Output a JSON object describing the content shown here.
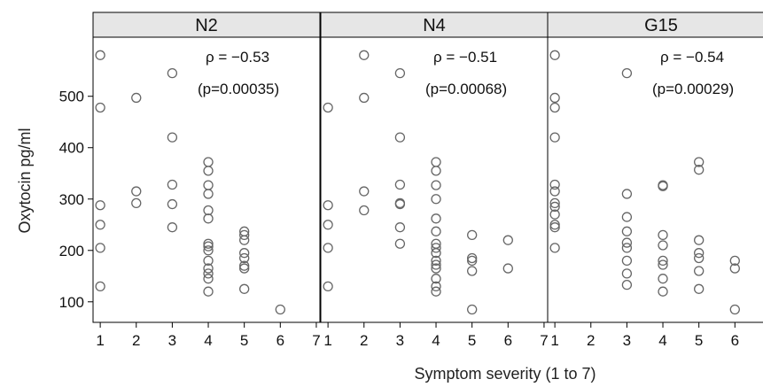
{
  "chart_data": {
    "type": "scatter",
    "xlabel": "Symptom severity (1 to 7)",
    "ylabel": "Oxytocin pg/ml",
    "xlim": [
      0.8,
      7.1
    ],
    "ylim": [
      60,
      615
    ],
    "x_ticks": [
      1,
      2,
      3,
      4,
      5,
      6,
      7
    ],
    "y_ticks": [
      100,
      200,
      300,
      400,
      500
    ],
    "colors": {
      "marker": "#666666",
      "strip": "#e6e6e6",
      "frame": "#000000"
    },
    "panels": [
      {
        "title": "N2",
        "annotation_rho": "ρ = −0.53",
        "annotation_p": "(p=0.00035)",
        "points": [
          [
            1,
            580
          ],
          [
            1,
            478
          ],
          [
            1,
            288
          ],
          [
            1,
            250
          ],
          [
            1,
            205
          ],
          [
            1,
            130
          ],
          [
            2,
            497
          ],
          [
            2,
            315
          ],
          [
            2,
            292
          ],
          [
            3,
            545
          ],
          [
            3,
            420
          ],
          [
            3,
            328
          ],
          [
            3,
            290
          ],
          [
            3,
            245
          ],
          [
            4,
            372
          ],
          [
            4,
            355
          ],
          [
            4,
            327
          ],
          [
            4,
            310
          ],
          [
            4,
            278
          ],
          [
            4,
            262
          ],
          [
            4,
            213
          ],
          [
            4,
            208
          ],
          [
            4,
            200
          ],
          [
            4,
            180
          ],
          [
            4,
            165
          ],
          [
            4,
            155
          ],
          [
            4,
            145
          ],
          [
            4,
            120
          ],
          [
            5,
            237
          ],
          [
            5,
            230
          ],
          [
            5,
            220
          ],
          [
            5,
            195
          ],
          [
            5,
            185
          ],
          [
            5,
            170
          ],
          [
            5,
            165
          ],
          [
            5,
            125
          ],
          [
            6,
            85
          ]
        ]
      },
      {
        "title": "N4",
        "annotation_rho": "ρ = −0.51",
        "annotation_p": "(p=0.00068)",
        "points": [
          [
            1,
            478
          ],
          [
            1,
            288
          ],
          [
            1,
            250
          ],
          [
            1,
            205
          ],
          [
            1,
            130
          ],
          [
            2,
            580
          ],
          [
            2,
            497
          ],
          [
            2,
            315
          ],
          [
            2,
            278
          ],
          [
            3,
            545
          ],
          [
            3,
            420
          ],
          [
            3,
            328
          ],
          [
            3,
            292
          ],
          [
            3,
            290
          ],
          [
            3,
            245
          ],
          [
            3,
            213
          ],
          [
            4,
            372
          ],
          [
            4,
            355
          ],
          [
            4,
            327
          ],
          [
            4,
            300
          ],
          [
            4,
            262
          ],
          [
            4,
            237
          ],
          [
            4,
            213
          ],
          [
            4,
            205
          ],
          [
            4,
            195
          ],
          [
            4,
            180
          ],
          [
            4,
            172
          ],
          [
            4,
            165
          ],
          [
            4,
            145
          ],
          [
            4,
            130
          ],
          [
            4,
            120
          ],
          [
            5,
            230
          ],
          [
            5,
            185
          ],
          [
            5,
            180
          ],
          [
            5,
            160
          ],
          [
            5,
            85
          ],
          [
            6,
            220
          ],
          [
            6,
            165
          ]
        ]
      },
      {
        "title": "G15",
        "annotation_rho": "ρ = −0.54",
        "annotation_p": "(p=0.00029)",
        "points": [
          [
            1,
            580
          ],
          [
            1,
            497
          ],
          [
            1,
            478
          ],
          [
            1,
            420
          ],
          [
            1,
            328
          ],
          [
            1,
            315
          ],
          [
            1,
            292
          ],
          [
            1,
            285
          ],
          [
            1,
            270
          ],
          [
            1,
            250
          ],
          [
            1,
            245
          ],
          [
            1,
            205
          ],
          [
            3,
            545
          ],
          [
            3,
            310
          ],
          [
            3,
            265
          ],
          [
            3,
            237
          ],
          [
            3,
            215
          ],
          [
            3,
            205
          ],
          [
            3,
            180
          ],
          [
            3,
            155
          ],
          [
            3,
            133
          ],
          [
            4,
            327
          ],
          [
            4,
            325
          ],
          [
            4,
            230
          ],
          [
            4,
            210
          ],
          [
            4,
            180
          ],
          [
            4,
            172
          ],
          [
            4,
            145
          ],
          [
            4,
            120
          ],
          [
            5,
            372
          ],
          [
            5,
            357
          ],
          [
            5,
            220
          ],
          [
            5,
            195
          ],
          [
            5,
            185
          ],
          [
            5,
            160
          ],
          [
            5,
            125
          ],
          [
            6,
            180
          ],
          [
            6,
            165
          ],
          [
            6,
            85
          ]
        ]
      }
    ]
  }
}
